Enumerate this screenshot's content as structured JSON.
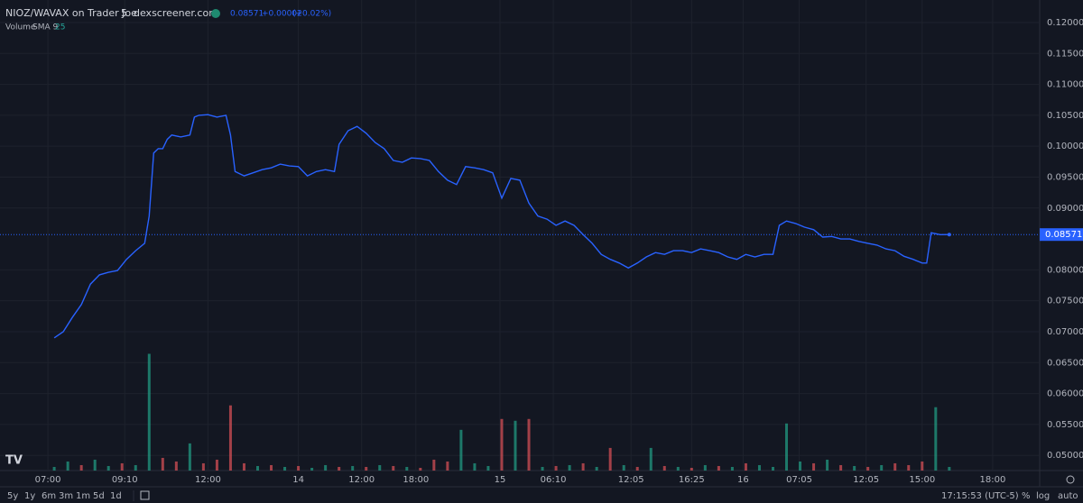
{
  "header": {
    "pair": "NIOZ/WAVAX on Trader Joe",
    "interval": "5",
    "source": "dexscreener.com",
    "change": "+0.00002",
    "change_pct": "(+0.02%)",
    "volume_label": "Volume",
    "sma_label": "SMA 9",
    "sma_value": "25"
  },
  "toolbar": {
    "ranges": [
      "5y",
      "1y",
      "6m",
      "3m",
      "1m",
      "5d",
      "1d"
    ],
    "clock": "17:15:53 (UTC-5)",
    "options": [
      "%",
      "log",
      "auto"
    ]
  },
  "chart_data": {
    "type": "line",
    "last": {
      "value": 0.08571,
      "label": "0.08571"
    },
    "xlim": [
      0,
      230
    ],
    "ylim": [
      0.04755,
      0.12364
    ],
    "grid": true,
    "xticks": [
      {
        "value": 10.6,
        "label": "07:00"
      },
      {
        "value": 27.6,
        "label": "09:10"
      },
      {
        "value": 46,
        "label": "12:00"
      },
      {
        "value": 66,
        "label": "14"
      },
      {
        "value": 80,
        "label": "12:00"
      },
      {
        "value": 92,
        "label": "18:00"
      },
      {
        "value": 110.6,
        "label": "15"
      },
      {
        "value": 122.4,
        "label": "06:10"
      },
      {
        "value": 139.6,
        "label": "12:05"
      },
      {
        "value": 153,
        "label": "16:25"
      },
      {
        "value": 164.4,
        "label": "16"
      },
      {
        "value": 176.8,
        "label": "07:05"
      },
      {
        "value": 191.6,
        "label": "12:05"
      },
      {
        "value": 204,
        "label": "15:00"
      },
      {
        "value": 219.6,
        "label": "18:00"
      }
    ],
    "yticks": [
      {
        "value": 0.12,
        "label": "0.12000"
      },
      {
        "value": 0.115,
        "label": "0.11500"
      },
      {
        "value": 0.11,
        "label": "0.11000"
      },
      {
        "value": 0.105,
        "label": "0.10500"
      },
      {
        "value": 0.1,
        "label": "0.10000"
      },
      {
        "value": 0.095,
        "label": "0.09500"
      },
      {
        "value": 0.09,
        "label": "0.09000"
      },
      {
        "value": 0.08,
        "label": "0.08000"
      },
      {
        "value": 0.075,
        "label": "0.07500"
      },
      {
        "value": 0.07,
        "label": "0.07000"
      },
      {
        "value": 0.065,
        "label": "0.06500"
      },
      {
        "value": 0.06,
        "label": "0.06000"
      },
      {
        "value": 0.055,
        "label": "0.05500"
      },
      {
        "value": 0.05,
        "label": "0.05000"
      }
    ],
    "series": [
      {
        "color": "#2962ff",
        "x": [
          12,
          14,
          16,
          18,
          20,
          22,
          24,
          26,
          28,
          30,
          32,
          33,
          34,
          35,
          36,
          37,
          38,
          40,
          42,
          43,
          44,
          46,
          48,
          50,
          51,
          52,
          54,
          56,
          58,
          60,
          62,
          64,
          66,
          68,
          70,
          72,
          74,
          75,
          77,
          79,
          81,
          83,
          85,
          87,
          89,
          91,
          93,
          95,
          97,
          99,
          101,
          103,
          105,
          107,
          109,
          111,
          113,
          115,
          117,
          119,
          121,
          123,
          125,
          127,
          129,
          131,
          133,
          135,
          137,
          139,
          141,
          143,
          145,
          147,
          149,
          151,
          153,
          155,
          157,
          159,
          161,
          163,
          165,
          167,
          169,
          171,
          172.4,
          174,
          176,
          178,
          180,
          182,
          184,
          186,
          188,
          190,
          192,
          194,
          196,
          198,
          200,
          202,
          204,
          205,
          206,
          208,
          210
        ],
        "values": [
          0.069,
          0.07,
          0.0723,
          0.0744,
          0.0777,
          0.0792,
          0.0796,
          0.0799,
          0.0817,
          0.0831,
          0.0843,
          0.0887,
          0.0989,
          0.0996,
          0.0996,
          0.1011,
          0.1018,
          0.1015,
          0.1018,
          0.1047,
          0.105,
          0.1051,
          0.1047,
          0.105,
          0.1018,
          0.0959,
          0.0952,
          0.0957,
          0.0962,
          0.0965,
          0.0971,
          0.0968,
          0.0967,
          0.0952,
          0.0959,
          0.0962,
          0.0959,
          0.1003,
          0.1025,
          0.1032,
          0.1021,
          0.1006,
          0.0996,
          0.0977,
          0.0974,
          0.0981,
          0.098,
          0.0977,
          0.0959,
          0.0945,
          0.0938,
          0.0967,
          0.0965,
          0.0962,
          0.0957,
          0.0916,
          0.0948,
          0.0945,
          0.0908,
          0.0887,
          0.0882,
          0.0872,
          0.0879,
          0.0872,
          0.0857,
          0.0843,
          0.0825,
          0.0817,
          0.0811,
          0.0803,
          0.0811,
          0.0821,
          0.0828,
          0.0825,
          0.0831,
          0.0831,
          0.0828,
          0.0834,
          0.0831,
          0.0828,
          0.0821,
          0.0817,
          0.0825,
          0.0821,
          0.0825,
          0.0825,
          0.0872,
          0.0879,
          0.0875,
          0.0869,
          0.0865,
          0.0853,
          0.0854,
          0.085,
          0.085,
          0.0846,
          0.0843,
          0.084,
          0.0834,
          0.0831,
          0.0822,
          0.0817,
          0.0811,
          0.0811,
          0.086,
          0.0857,
          0.08571
        ]
      }
    ],
    "volume": {
      "ylim": [
        0,
        520
      ],
      "up_color": "#229981",
      "down_color": "#d44f55",
      "x": [
        12,
        15,
        18,
        21,
        24,
        27,
        30,
        33,
        36,
        39,
        42,
        45,
        48,
        51,
        54,
        57,
        60,
        63,
        66,
        69,
        72,
        75,
        78,
        81,
        84,
        87,
        90,
        93,
        96,
        99,
        102,
        105,
        108,
        111,
        114,
        117,
        120,
        123,
        126,
        129,
        132,
        135,
        138,
        141,
        144,
        147,
        150,
        153,
        156,
        159,
        162,
        165,
        168,
        171,
        174,
        177,
        180,
        183,
        186,
        189,
        192,
        195,
        198,
        201,
        204,
        207,
        210
      ],
      "values": [
        4,
        10,
        6,
        12,
        5,
        8,
        6,
        129,
        14,
        10,
        30,
        8,
        12,
        72,
        8,
        5,
        6,
        4,
        5,
        3,
        6,
        4,
        5,
        4,
        6,
        5,
        4,
        3,
        12,
        10,
        45,
        8,
        5,
        57,
        55,
        57,
        4,
        5,
        6,
        8,
        4,
        25,
        6,
        4,
        25,
        5,
        4,
        3,
        6,
        5,
        4,
        8,
        6,
        4,
        52,
        10,
        8,
        12,
        6,
        5,
        4,
        6,
        8,
        6,
        10,
        70,
        4
      ],
      "up": [
        true,
        true,
        false,
        true,
        true,
        false,
        true,
        true,
        false,
        false,
        true,
        false,
        false,
        false,
        false,
        true,
        false,
        true,
        false,
        true,
        true,
        false,
        true,
        false,
        true,
        false,
        true,
        false,
        false,
        false,
        true,
        true,
        true,
        false,
        true,
        false,
        true,
        false,
        true,
        false,
        true,
        false,
        true,
        false,
        true,
        false,
        true,
        false,
        true,
        false,
        true,
        false,
        true,
        true,
        true,
        true,
        false,
        true,
        false,
        true,
        false,
        true,
        false,
        false,
        false,
        true,
        true
      ]
    }
  }
}
